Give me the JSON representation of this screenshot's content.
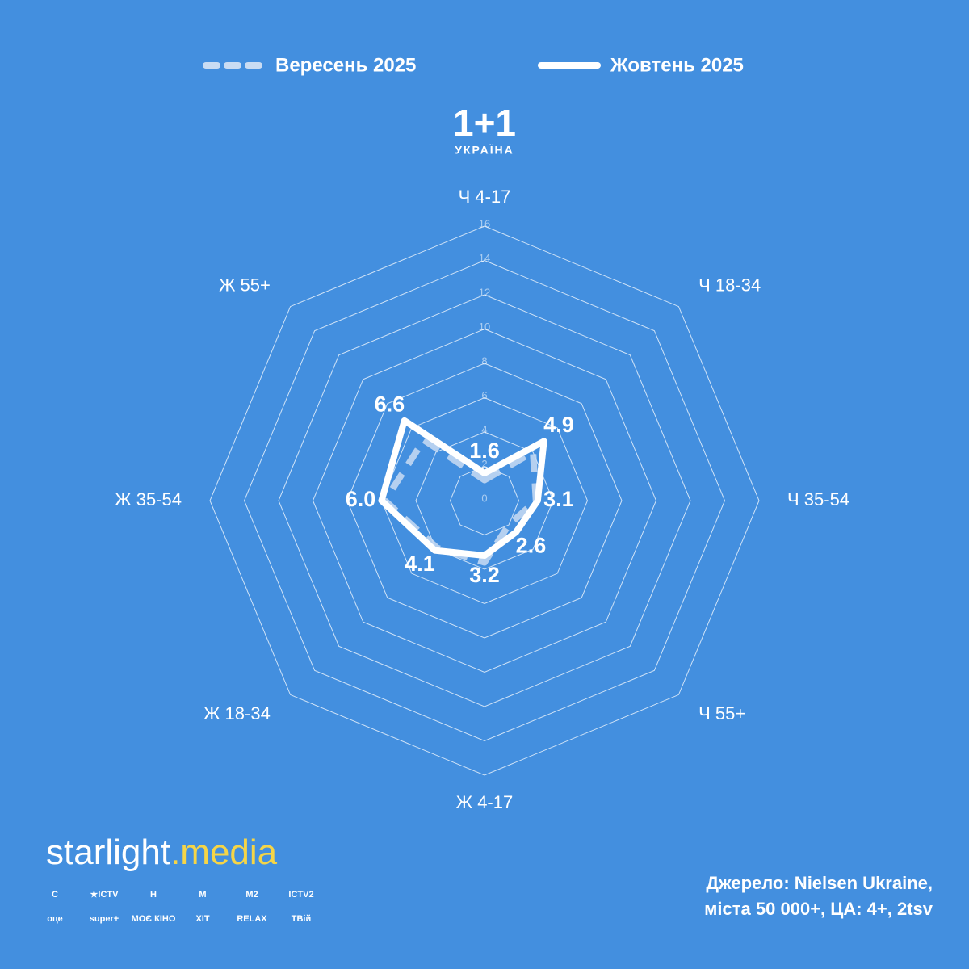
{
  "chart_data": {
    "type": "radar",
    "categories": [
      "Ч 4-17",
      "Ч 18-34",
      "Ч 35-54",
      "Ч 55+",
      "Ж 4-17",
      "Ж 18-34",
      "Ж 35-54",
      "Ж 55+"
    ],
    "series": [
      {
        "name": "Вересень 2025",
        "color": "#c9dcf3",
        "dashed": true,
        "values": [
          1.2,
          4.0,
          3.0,
          2.0,
          3.6,
          3.9,
          5.8,
          5.0
        ]
      },
      {
        "name": "Жовтень 2025",
        "color": "#ffffff",
        "dashed": false,
        "values": [
          1.6,
          4.9,
          3.1,
          2.6,
          3.2,
          4.1,
          6.0,
          6.6
        ],
        "value_labels": [
          "1.6",
          "4.9",
          "3.1",
          "2.6",
          "3.2",
          "4.1",
          "6.0",
          "6.6"
        ]
      }
    ],
    "rlim": [
      0,
      16
    ],
    "rticks": [
      0,
      2,
      4,
      6,
      8,
      10,
      12,
      14,
      16
    ],
    "grid": true,
    "legend": "top"
  },
  "logo": {
    "title": "1+1",
    "subtitle": "УКРАЇНА"
  },
  "brand": {
    "name": "starlight",
    "suffix": ".media",
    "channels": [
      "С",
      "★ICTV",
      "Н",
      "М",
      "М2",
      "ICTV2",
      "оце",
      "super+",
      "МОЄ КІНО",
      "ХІТ",
      "RELAX",
      "ТВій"
    ]
  },
  "source": {
    "lines": [
      "Джерело: Nielsen Ukraine,",
      "міста 50 000+, ЦА: 4+, 2tsv"
    ]
  }
}
